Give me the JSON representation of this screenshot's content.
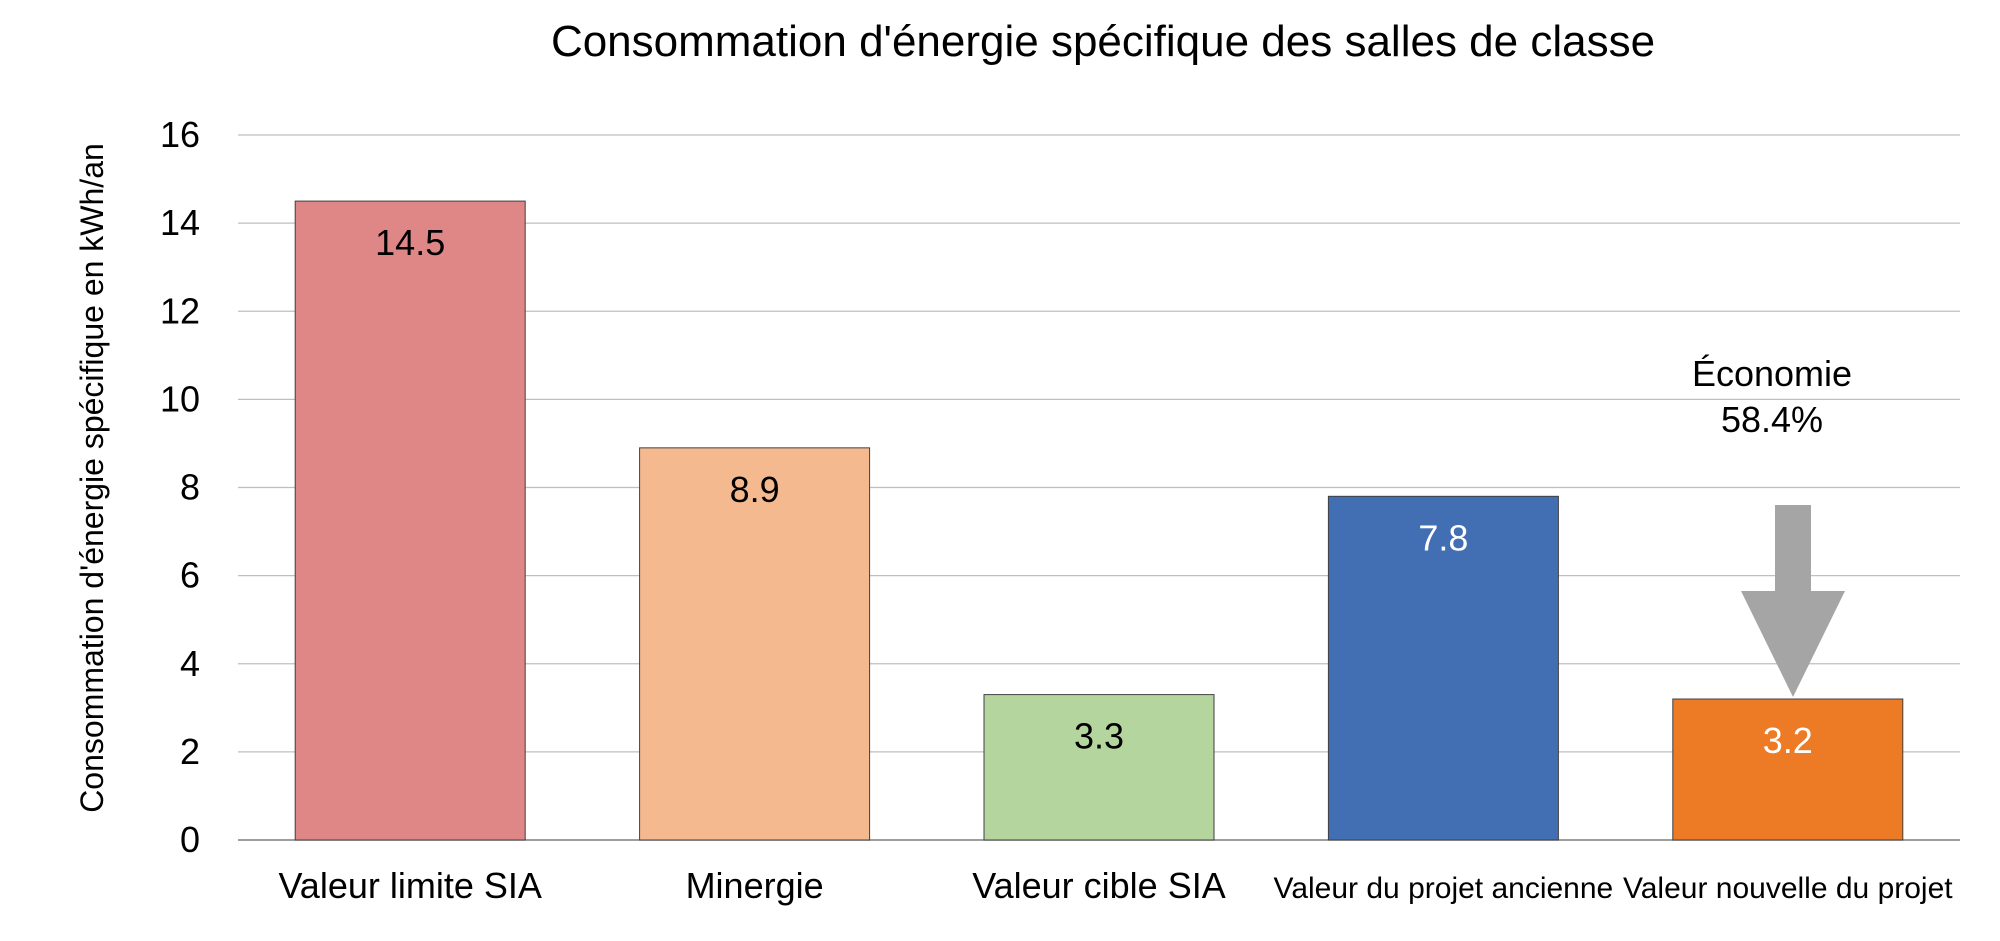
{
  "chart_data": {
    "type": "bar",
    "title": "Consommation d'énergie spécifique des salles de classe",
    "ylabel": "Consommation d'énergie spécifique en kWh/an",
    "xlabel": "",
    "ylim": [
      0,
      16
    ],
    "yticks": [
      0,
      2,
      4,
      6,
      8,
      10,
      12,
      14,
      16
    ],
    "grid": true,
    "categories": [
      "Valeur limite SIA",
      "Minergie",
      "Valeur cible SIA",
      "Valeur du projet ancienne",
      "Valeur nouvelle du projet"
    ],
    "values": [
      14.5,
      8.9,
      3.3,
      7.8,
      3.2
    ],
    "value_labels": [
      "14.5",
      "8.9",
      "3.3",
      "7.8",
      "3.2"
    ],
    "colors": [
      "#df8687",
      "#f5b98f",
      "#b5d59f",
      "#426eb4",
      "#ed7a24"
    ],
    "label_colors": [
      "#000000",
      "#000000",
      "#000000",
      "#ffffff",
      "#ffffff"
    ],
    "annotation": {
      "line1": "Économie",
      "line2": "58.4%",
      "arrow_color": "#a5a5a5"
    }
  }
}
